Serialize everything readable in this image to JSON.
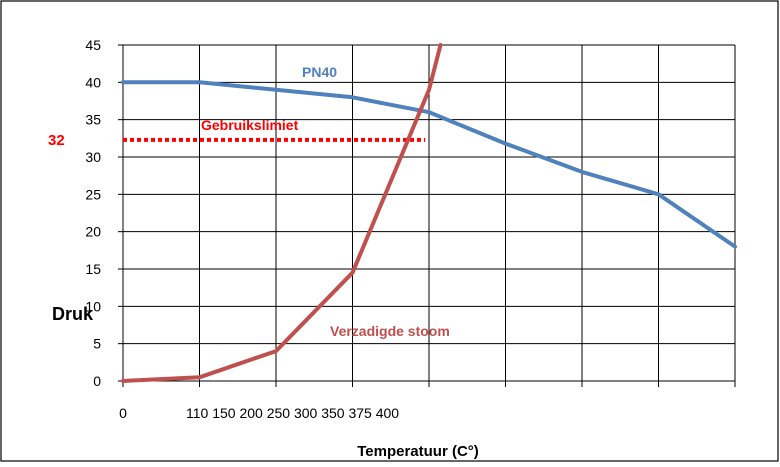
{
  "chart_data": {
    "type": "line",
    "title": "",
    "xlabel": "Temperatuur (C°)",
    "ylabel": "Druk",
    "ylim": [
      0,
      45
    ],
    "y_ticks": [
      "0",
      "5",
      "10",
      "15",
      "20",
      "25",
      "30",
      "35",
      "40",
      "45"
    ],
    "x_tick_labels": [
      "0",
      "110 150 200 250 300 350 375 400"
    ],
    "grid": true,
    "series": [
      {
        "name": "PN40",
        "color": "#4f81bd",
        "x": [
          0,
          1,
          2,
          3,
          4,
          5,
          6,
          7,
          8
        ],
        "values": [
          40,
          40,
          39,
          38,
          36,
          31.8,
          28,
          25,
          18
        ]
      },
      {
        "name": "Verzadigde stoom",
        "color": "#c0504d",
        "x": [
          0,
          1,
          2,
          3,
          4,
          4.15
        ],
        "values": [
          0,
          0.5,
          4,
          14.5,
          39,
          45
        ]
      }
    ],
    "limit_line": {
      "label": "Gebruikslimiet",
      "value_label": "32",
      "y": 32.3,
      "x_start": 0,
      "x_end": 3.95,
      "color": "#ff0000"
    }
  }
}
